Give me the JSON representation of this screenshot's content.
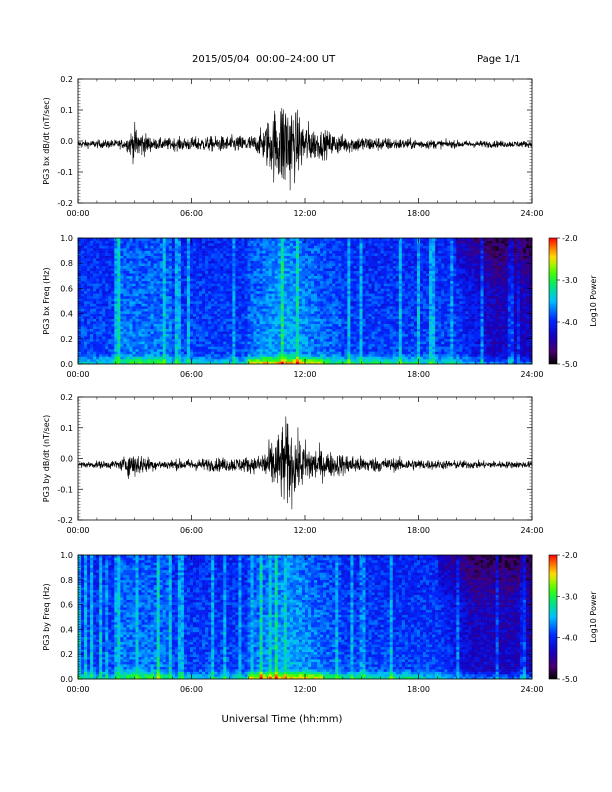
{
  "header": {
    "title": "2015/05/04  00:00–24:00 UT",
    "page_label": "Page 1/1"
  },
  "xlabel": "Universal Time (hh:mm)",
  "chart_data": [
    {
      "type": "line",
      "name": "bx-dbdt",
      "ylabel": "PG3 bx dB/dt (nT/sec)",
      "xlim": [
        0,
        24
      ],
      "ylim": [
        -0.2,
        0.2
      ],
      "x_ticks": [
        "00:00",
        "06:00",
        "12:00",
        "18:00",
        "24:00"
      ],
      "y_ticks": [
        "0.2",
        "0.1",
        "0.0",
        "-0.1",
        "-0.2"
      ],
      "baseline": -0.01,
      "envelope": [
        {
          "t": 0,
          "amp": 0.008
        },
        {
          "t": 2.5,
          "amp": 0.01
        },
        {
          "t": 3.0,
          "amp": 0.04
        },
        {
          "t": 3.5,
          "amp": 0.025
        },
        {
          "t": 4.0,
          "amp": 0.012
        },
        {
          "t": 9.5,
          "amp": 0.02
        },
        {
          "t": 10.6,
          "amp": 0.09
        },
        {
          "t": 11.0,
          "amp": 0.12
        },
        {
          "t": 11.5,
          "amp": 0.07
        },
        {
          "t": 12.5,
          "amp": 0.035
        },
        {
          "t": 14.0,
          "amp": 0.02
        },
        {
          "t": 17.0,
          "amp": 0.012
        },
        {
          "t": 20.0,
          "amp": 0.008
        },
        {
          "t": 24.0,
          "amp": 0.007
        }
      ]
    },
    {
      "type": "heatmap",
      "name": "bx-spectrogram",
      "ylabel": "PG3 bx Freq (Hz)",
      "xlim": [
        0,
        24
      ],
      "ylim": [
        0,
        1.0
      ],
      "x_ticks": [
        "00:00",
        "06:00",
        "12:00",
        "18:00",
        "24:00"
      ],
      "y_ticks": [
        "1.0",
        "0.8",
        "0.6",
        "0.4",
        "0.2",
        "0.0"
      ],
      "colorbar": {
        "label": "Log10 Power",
        "range": [
          -5.0,
          -2.0
        ],
        "ticks": [
          "-2.0",
          "-3.0",
          "-4.0",
          "-5.0"
        ]
      },
      "quiet_after": 20.0
    },
    {
      "type": "line",
      "name": "by-dbdt",
      "ylabel": "PG3 by dB/dt (nT/sec)",
      "xlim": [
        0,
        24
      ],
      "ylim": [
        -0.2,
        0.2
      ],
      "x_ticks": [
        "00:00",
        "06:00",
        "12:00",
        "18:00",
        "24:00"
      ],
      "y_ticks": [
        "0.2",
        "0.1",
        "0.0",
        "-0.1",
        "-0.2"
      ],
      "baseline": -0.02,
      "envelope": [
        {
          "t": 0,
          "amp": 0.006
        },
        {
          "t": 2.2,
          "amp": 0.01
        },
        {
          "t": 2.8,
          "amp": 0.03
        },
        {
          "t": 3.5,
          "amp": 0.02
        },
        {
          "t": 4.2,
          "amp": 0.01
        },
        {
          "t": 9.5,
          "amp": 0.018
        },
        {
          "t": 10.6,
          "amp": 0.07
        },
        {
          "t": 11.0,
          "amp": 0.1
        },
        {
          "t": 11.6,
          "amp": 0.06
        },
        {
          "t": 13.0,
          "amp": 0.03
        },
        {
          "t": 15.0,
          "amp": 0.018
        },
        {
          "t": 19.0,
          "amp": 0.01
        },
        {
          "t": 24.0,
          "amp": 0.007
        }
      ]
    },
    {
      "type": "heatmap",
      "name": "by-spectrogram",
      "ylabel": "PG3 by Freq (Hz)",
      "xlim": [
        0,
        24
      ],
      "ylim": [
        0,
        1.0
      ],
      "x_ticks": [
        "00:00",
        "06:00",
        "12:00",
        "18:00",
        "24:00"
      ],
      "y_ticks": [
        "1.0",
        "0.8",
        "0.6",
        "0.4",
        "0.2",
        "0.0"
      ],
      "colorbar": {
        "label": "Log10 Power",
        "range": [
          -5.0,
          -2.0
        ],
        "ticks": [
          "-2.0",
          "-3.0",
          "-4.0",
          "-5.0"
        ]
      },
      "quiet_after": 19.0
    }
  ]
}
